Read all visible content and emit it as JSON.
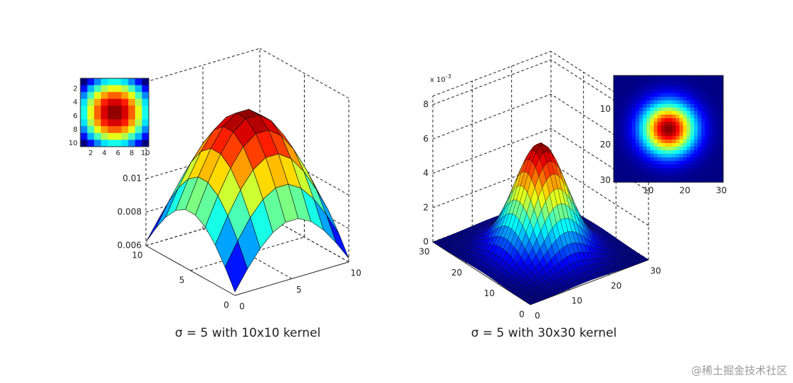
{
  "panels": [
    {
      "caption": "σ = 5 with 10x10 kernel",
      "z_ticks": [
        "0.006",
        "0.008",
        "0.01"
      ],
      "x_ticks": [
        "0",
        "5",
        "10"
      ],
      "y_ticks": [
        "0",
        "5",
        "10"
      ],
      "inset": {
        "x_ticks": [
          "2",
          "4",
          "6",
          "8",
          "10"
        ],
        "y_ticks": [
          "2",
          "4",
          "6",
          "8",
          "10"
        ]
      }
    },
    {
      "caption": "σ = 5 with 30x30 kernel",
      "z_exponent": "x 10",
      "z_exponent_power": "-3",
      "z_ticks": [
        "0",
        "2",
        "4",
        "6",
        "8"
      ],
      "x_ticks": [
        "0",
        "10",
        "20",
        "30"
      ],
      "y_ticks": [
        "0",
        "10",
        "20",
        "30"
      ],
      "inset": {
        "x_ticks": [
          "10",
          "20",
          "30"
        ],
        "y_ticks": [
          "10",
          "20",
          "30"
        ]
      }
    }
  ],
  "watermark": "@稀土掘金技术社区"
}
